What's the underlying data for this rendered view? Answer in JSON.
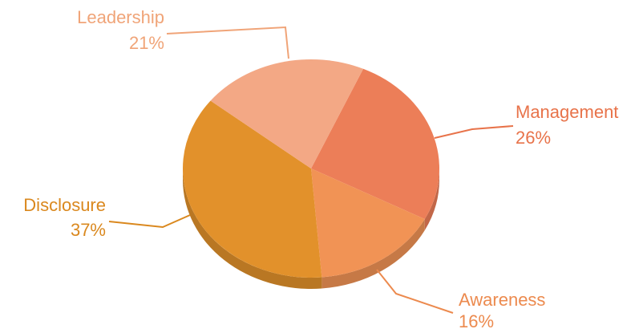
{
  "chart_data": {
    "type": "pie",
    "title": "",
    "categories": [
      "Management",
      "Awareness",
      "Disclosure",
      "Leadership"
    ],
    "values": [
      26,
      16,
      37,
      21
    ],
    "value_labels": [
      "26%",
      "16%",
      "37%",
      "21%"
    ],
    "colors": [
      "#EC7E58",
      "#F19355",
      "#E2912B",
      "#F3A885"
    ],
    "label_colors": [
      "#E8734A",
      "#EC8A4E",
      "#DA881E",
      "#F0A478"
    ],
    "legend": "none",
    "style": "3d-tilted",
    "start_angle_deg": 66,
    "direction": "clockwise"
  }
}
